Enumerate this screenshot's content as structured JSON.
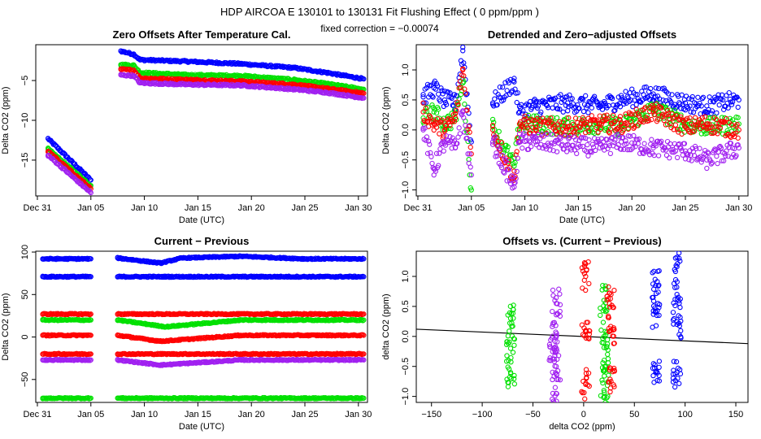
{
  "figure": {
    "title": "HDP    AIRCOA E   130101 to 130131   Fit Flushing Effect ( 0 ppm/ppm )",
    "subtitle": "fixed correction = −0.00074"
  },
  "chart_data": [
    {
      "id": "p1",
      "type": "scatter",
      "title": "Zero Offsets After Temperature Cal.",
      "xlabel": "Date (UTC)",
      "ylabel": "Delta CO2 (ppm)",
      "xlim": [
        0.85,
        31.85
      ],
      "ylim": [
        -19.5,
        -0.5
      ],
      "x_ticks": [
        1,
        6,
        11,
        16,
        21,
        26,
        31
      ],
      "x_tick_labels": [
        "Dec 31",
        "Jan 05",
        "Jan 10",
        "Jan 15",
        "Jan 20",
        "Jan 25",
        "Jan 30"
      ],
      "y_ticks": [
        -15,
        -10,
        -5
      ],
      "y_tick_labels": [
        "−15",
        "−10",
        "−5"
      ],
      "series": [
        {
          "name": "blue",
          "color": "#0000ff",
          "x": [
            2,
            6,
            8.8,
            10,
            10.6,
            15,
            20,
            25,
            28,
            31.5
          ],
          "y": [
            -12.3,
            -17.5,
            -1.3,
            -1.7,
            -2.4,
            -2.6,
            -2.9,
            -3.4,
            -4.0,
            -4.8
          ]
        },
        {
          "name": "green",
          "color": "#00e000",
          "x": [
            2,
            6,
            8.8,
            10,
            10.6,
            15,
            20,
            25,
            28,
            31.5
          ],
          "y": [
            -13.6,
            -18.2,
            -3.0,
            -3.1,
            -4.0,
            -4.3,
            -4.4,
            -4.9,
            -5.4,
            -6.1
          ]
        },
        {
          "name": "red",
          "color": "#ff0000",
          "x": [
            2,
            6,
            8.8,
            10,
            10.6,
            15,
            20,
            25,
            28,
            31.5
          ],
          "y": [
            -13.9,
            -18.6,
            -3.6,
            -3.7,
            -4.7,
            -4.9,
            -5.1,
            -5.5,
            -6.0,
            -6.6
          ]
        },
        {
          "name": "purple",
          "color": "#a020f0",
          "x": [
            2,
            6,
            8.8,
            10,
            10.6,
            15,
            20,
            25,
            28,
            31.5
          ],
          "y": [
            -14.4,
            -19.1,
            -4.3,
            -4.4,
            -5.3,
            -5.5,
            -5.6,
            -6.1,
            -6.5,
            -7.2
          ]
        }
      ]
    },
    {
      "id": "p2",
      "type": "scatter",
      "title": "Detrended and Zero−adjusted Offsets",
      "xlabel": "Date (UTC)",
      "ylabel": "Delta CO2 (ppm)",
      "xlim": [
        0.85,
        31.85
      ],
      "ylim": [
        -1.1,
        1.42
      ],
      "x_ticks": [
        1,
        6,
        11,
        16,
        21,
        26,
        31
      ],
      "x_tick_labels": [
        "Dec 31",
        "Jan 05",
        "Jan 10",
        "Jan 15",
        "Jan 20",
        "Jan 25",
        "Jan 30"
      ],
      "y_ticks": [
        -1.0,
        -0.5,
        0.0,
        0.5,
        1.0
      ],
      "y_tick_labels": [
        "−1.0",
        "−0.5",
        "0.0",
        "0.5",
        "1.0"
      ],
      "series": [
        {
          "name": "blue",
          "color": "#0000ff",
          "x": [
            1.5,
            2.5,
            3.5,
            4.5,
            5.2,
            6,
            8,
            10,
            10.5,
            12,
            15,
            18,
            20,
            23,
            26,
            28,
            31
          ],
          "y": [
            0.55,
            0.7,
            0.5,
            0.45,
            1.32,
            -0.2,
            0.45,
            0.8,
            0.3,
            0.4,
            0.45,
            0.4,
            0.5,
            0.6,
            0.45,
            0.4,
            0.5
          ]
        },
        {
          "name": "green",
          "color": "#00e000",
          "x": [
            1.5,
            2.5,
            3.5,
            4.5,
            5.2,
            6,
            8,
            10,
            10.5,
            12,
            15,
            18,
            20,
            23,
            26,
            28,
            31
          ],
          "y": [
            0.2,
            0.3,
            0.1,
            0.2,
            0.85,
            -1.0,
            0.05,
            -0.6,
            0.1,
            0.1,
            0.05,
            0.1,
            0.05,
            0.35,
            0.1,
            0.05,
            0.1
          ]
        },
        {
          "name": "red",
          "color": "#ff0000",
          "x": [
            1.5,
            2.5,
            3.5,
            4.5,
            5.2,
            6,
            8,
            10,
            10.5,
            12,
            15,
            18,
            20,
            23,
            26,
            28,
            31
          ],
          "y": [
            0.3,
            0.1,
            0.0,
            0.2,
            1.0,
            -0.4,
            0.0,
            -0.8,
            0.1,
            0.05,
            0.05,
            0.1,
            0.1,
            0.3,
            0.05,
            0.1,
            0.0
          ]
        },
        {
          "name": "purple",
          "color": "#a020f0",
          "x": [
            1.5,
            2.5,
            3.5,
            4.5,
            5.2,
            6,
            8,
            10,
            10.5,
            12,
            15,
            18,
            20,
            23,
            26,
            28,
            31
          ],
          "y": [
            0.0,
            -0.65,
            -0.2,
            -0.3,
            0.3,
            -0.75,
            -0.2,
            -0.95,
            -0.2,
            -0.2,
            -0.25,
            -0.3,
            -0.2,
            -0.3,
            -0.35,
            -0.5,
            -0.3
          ]
        }
      ]
    },
    {
      "id": "p3",
      "type": "scatter",
      "title": "Current − Previous",
      "xlabel": "Date (UTC)",
      "ylabel": "Delta CO2 (ppm)",
      "xlim": [
        0.85,
        31.85
      ],
      "ylim": [
        -77,
        101
      ],
      "x_ticks": [
        1,
        6,
        11,
        16,
        21,
        26,
        31
      ],
      "x_tick_labels": [
        "Dec 31",
        "Jan 05",
        "Jan 10",
        "Jan 15",
        "Jan 20",
        "Jan 25",
        "Jan 30"
      ],
      "y_ticks": [
        -50,
        0,
        50,
        100
      ],
      "y_tick_labels": [
        "−50",
        "0",
        "50",
        "100"
      ],
      "series": [
        {
          "name": "blue",
          "color": "#0000ff",
          "x": [
            1.5,
            6,
            8.5,
            12.5,
            14.5,
            20,
            26,
            31.5
          ],
          "y": [
            92,
            92,
            93,
            87,
            93,
            95,
            92,
            92
          ]
        },
        {
          "name": "blue-2",
          "color": "#0000ff",
          "x": [
            1.5,
            6,
            8.5,
            20,
            31.5
          ],
          "y": [
            71,
            71,
            71,
            71,
            71
          ]
        },
        {
          "name": "red",
          "color": "#ff0000",
          "x": [
            1.5,
            6,
            8.5,
            20,
            31.5
          ],
          "y": [
            27,
            27,
            27,
            27,
            27
          ]
        },
        {
          "name": "green",
          "color": "#00e000",
          "x": [
            1.5,
            6,
            8.5,
            13,
            20,
            31.5
          ],
          "y": [
            20,
            20,
            20,
            12,
            20,
            20
          ]
        },
        {
          "name": "red-2",
          "color": "#ff0000",
          "x": [
            1.5,
            6,
            8.5,
            12.5,
            20,
            31.5
          ],
          "y": [
            2,
            2,
            2,
            -5,
            2,
            2
          ]
        },
        {
          "name": "red-3",
          "color": "#ff0000",
          "x": [
            1.5,
            6,
            8.5,
            20,
            31.5
          ],
          "y": [
            -20,
            -20,
            -20,
            -20,
            -20
          ]
        },
        {
          "name": "purple",
          "color": "#a020f0",
          "x": [
            1.5,
            6,
            8.5,
            12.5,
            20,
            31.5
          ],
          "y": [
            -27,
            -27,
            -27,
            -33,
            -27,
            -27
          ]
        },
        {
          "name": "green-2",
          "color": "#00e000",
          "x": [
            1.5,
            6,
            8.5,
            20,
            31.5
          ],
          "y": [
            -72,
            -72,
            -72,
            -72,
            -72
          ]
        }
      ]
    },
    {
      "id": "p4",
      "type": "scatter",
      "title": "Offsets vs. (Current − Previous)",
      "xlabel": "delta CO2 (ppm)",
      "ylabel": "delta CO2 (ppm)",
      "xlim": [
        -165,
        162
      ],
      "ylim": [
        -1.1,
        1.42
      ],
      "x_ticks": [
        -150,
        -100,
        -50,
        0,
        50,
        100,
        150
      ],
      "x_tick_labels": [
        "−150",
        "−100",
        "−50",
        "0",
        "50",
        "100",
        "150"
      ],
      "y_ticks": [
        -1.0,
        -0.5,
        0.0,
        0.5,
        1.0
      ],
      "y_tick_labels": [
        "−1.0",
        "−0.5",
        "0.0",
        "0.5",
        "1.0"
      ],
      "fit_line": {
        "x": [
          -165,
          162
        ],
        "y": [
          0.12,
          -0.12
        ]
      },
      "series": [
        {
          "name": "green",
          "color": "#00e000",
          "x": [
            -72,
            -72,
            -72,
            20,
            20,
            20,
            22
          ],
          "y": [
            0.3,
            -0.2,
            -0.6,
            0.6,
            0.0,
            -0.9,
            -0.5
          ]
        },
        {
          "name": "purple",
          "color": "#a020f0",
          "x": [
            -27,
            -27,
            -27,
            -27,
            -30
          ],
          "y": [
            0.55,
            0.0,
            -0.5,
            -0.95,
            -0.2
          ]
        },
        {
          "name": "red",
          "color": "#ff0000",
          "x": [
            2,
            2,
            2,
            27,
            27,
            27
          ],
          "y": [
            1.0,
            0.1,
            -0.8,
            0.7,
            0.1,
            -0.75
          ]
        },
        {
          "name": "blue",
          "color": "#0000ff",
          "x": [
            71,
            71,
            71,
            92,
            92,
            92,
            92
          ],
          "y": [
            0.85,
            0.4,
            -0.6,
            1.32,
            0.7,
            0.2,
            -0.6
          ]
        }
      ]
    }
  ]
}
